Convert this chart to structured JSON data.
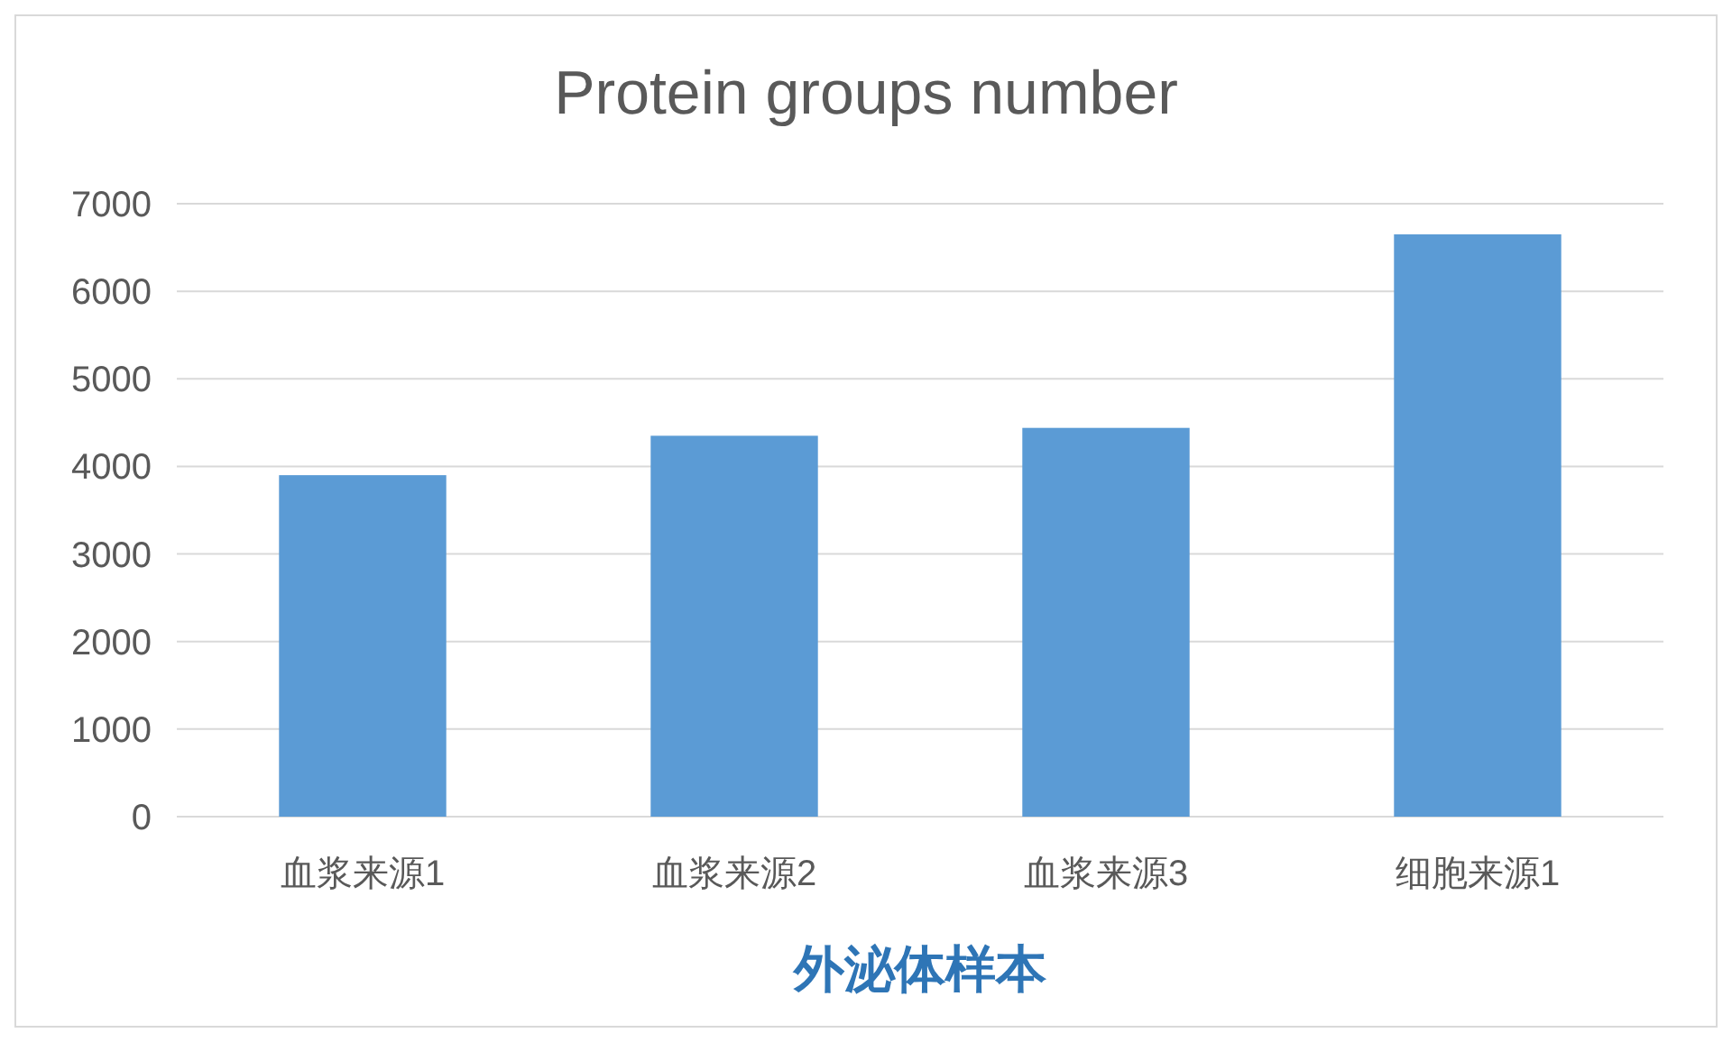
{
  "chart_data": {
    "type": "bar",
    "title": "Protein groups number",
    "xlabel": "外泌体样本",
    "categories": [
      "血浆来源1",
      "血浆来源2",
      "血浆来源3",
      "细胞来源1"
    ],
    "values": [
      3900,
      4350,
      4440,
      6650
    ],
    "color": "#5b9bd5",
    "ylim": [
      0,
      7000
    ],
    "yticks": [
      0,
      1000,
      2000,
      3000,
      4000,
      5000,
      6000,
      7000
    ],
    "grid": "y"
  }
}
